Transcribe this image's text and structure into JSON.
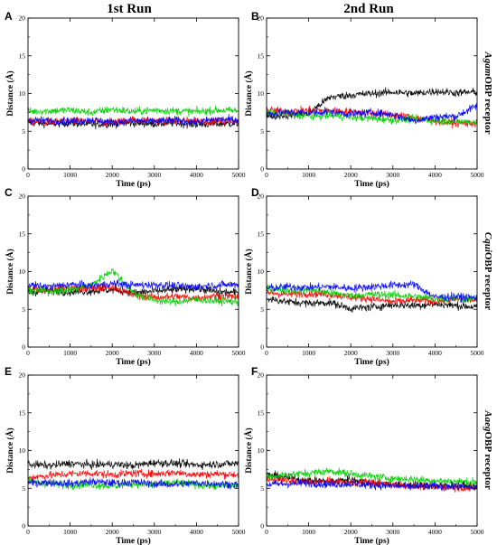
{
  "figure": {
    "column_titles": [
      "1st Run",
      "2nd Run"
    ],
    "row_labels": [
      {
        "italic": "Agam",
        "rest": "OBP receptor"
      },
      {
        "italic": "Cqui",
        "rest": "OBP receptor"
      },
      {
        "italic": "Aaeg",
        "rest": "OBP receptor"
      }
    ]
  },
  "chart_data": [
    {
      "type": "line",
      "panel": "A",
      "xlabel": "Time (ps)",
      "ylabel": "Distance (Å)",
      "xlim": [
        0,
        5000
      ],
      "ylim": [
        0,
        20
      ],
      "xticks": [
        0,
        1000,
        2000,
        3000,
        4000,
        5000
      ],
      "yticks": [
        0,
        5,
        10,
        15,
        20
      ],
      "x": [
        0,
        500,
        1000,
        1500,
        2000,
        2500,
        3000,
        3500,
        4000,
        4500,
        5000
      ],
      "series": [
        {
          "color": "#000000",
          "values": [
            6.2,
            6.0,
            6.1,
            5.9,
            6.0,
            6.1,
            6.0,
            6.1,
            5.9,
            6.0,
            6.0
          ]
        },
        {
          "color": "#ff0000",
          "values": [
            6.3,
            6.2,
            6.4,
            6.3,
            6.2,
            6.5,
            6.4,
            6.3,
            6.4,
            6.3,
            6.4
          ]
        },
        {
          "color": "#00cc00",
          "values": [
            7.6,
            7.7,
            7.8,
            7.5,
            7.9,
            7.6,
            7.8,
            7.7,
            7.6,
            7.8,
            7.7
          ]
        },
        {
          "color": "#0000ff",
          "values": [
            6.5,
            6.4,
            6.3,
            6.5,
            6.2,
            6.4,
            6.3,
            6.5,
            6.2,
            6.6,
            6.5
          ]
        }
      ]
    },
    {
      "type": "line",
      "panel": "B",
      "xlabel": "Time (ps)",
      "ylabel": "Distance (Å)",
      "xlim": [
        0,
        5000
      ],
      "ylim": [
        0,
        20
      ],
      "xticks": [
        0,
        1000,
        2000,
        3000,
        4000,
        5000
      ],
      "yticks": [
        0,
        5,
        10,
        15,
        20
      ],
      "x": [
        0,
        500,
        1000,
        1500,
        2000,
        2500,
        3000,
        3500,
        4000,
        4500,
        5000
      ],
      "series": [
        {
          "color": "#000000",
          "values": [
            7.0,
            7.1,
            7.4,
            9.5,
            9.8,
            10.0,
            10.2,
            10.0,
            10.3,
            10.1,
            10.2
          ]
        },
        {
          "color": "#ff0000",
          "values": [
            7.8,
            7.6,
            7.8,
            7.7,
            7.6,
            7.4,
            7.2,
            6.8,
            6.4,
            6.1,
            6.0
          ]
        },
        {
          "color": "#00cc00",
          "values": [
            7.5,
            7.3,
            7.0,
            7.1,
            6.9,
            6.7,
            6.5,
            6.6,
            6.4,
            6.3,
            6.2
          ]
        },
        {
          "color": "#0000ff",
          "values": [
            7.3,
            7.5,
            7.4,
            7.6,
            7.3,
            7.5,
            7.2,
            6.4,
            6.9,
            7.0,
            8.4
          ]
        }
      ]
    },
    {
      "type": "line",
      "panel": "C",
      "xlabel": "Time (ps)",
      "ylabel": "Distance (Å)",
      "xlim": [
        0,
        5000
      ],
      "ylim": [
        0,
        20
      ],
      "xticks": [
        0,
        1000,
        2000,
        3000,
        4000,
        5000
      ],
      "yticks": [
        0,
        5,
        10,
        15,
        20
      ],
      "x": [
        0,
        500,
        1000,
        1500,
        2000,
        2500,
        3000,
        3500,
        4000,
        4500,
        5000
      ],
      "series": [
        {
          "color": "#000000",
          "values": [
            7.2,
            7.5,
            7.3,
            7.4,
            7.6,
            7.2,
            7.4,
            7.6,
            7.8,
            7.3,
            7.2
          ]
        },
        {
          "color": "#ff0000",
          "values": [
            7.8,
            7.6,
            7.9,
            7.7,
            8.0,
            6.9,
            6.6,
            6.7,
            6.5,
            6.8,
            6.6
          ]
        },
        {
          "color": "#00cc00",
          "values": [
            7.5,
            7.4,
            7.6,
            8.2,
            10.2,
            7.2,
            6.2,
            6.0,
            6.3,
            6.1,
            6.0
          ]
        },
        {
          "color": "#0000ff",
          "values": [
            8.2,
            8.0,
            8.3,
            8.1,
            8.4,
            8.2,
            8.3,
            8.1,
            8.0,
            8.2,
            8.3
          ]
        }
      ]
    },
    {
      "type": "line",
      "panel": "D",
      "xlabel": "Time (ps)",
      "ylabel": "Distance (Å)",
      "xlim": [
        0,
        5000
      ],
      "ylim": [
        0,
        20
      ],
      "xticks": [
        0,
        1000,
        2000,
        3000,
        4000,
        5000
      ],
      "yticks": [
        0,
        5,
        10,
        15,
        20
      ],
      "x": [
        0,
        500,
        1000,
        1500,
        2000,
        2500,
        3000,
        3500,
        4000,
        4500,
        5000
      ],
      "series": [
        {
          "color": "#000000",
          "values": [
            6.4,
            6.0,
            5.8,
            5.9,
            5.1,
            5.3,
            5.6,
            5.5,
            5.7,
            5.5,
            5.3
          ]
        },
        {
          "color": "#ff0000",
          "values": [
            7.2,
            7.0,
            7.1,
            7.0,
            6.6,
            6.4,
            6.0,
            6.2,
            6.1,
            6.3,
            6.2
          ]
        },
        {
          "color": "#00cc00",
          "values": [
            7.8,
            7.5,
            7.6,
            7.2,
            6.8,
            7.0,
            6.9,
            6.7,
            6.4,
            6.5,
            6.3
          ]
        },
        {
          "color": "#0000ff",
          "values": [
            7.8,
            8.0,
            7.9,
            8.0,
            7.8,
            8.0,
            8.2,
            8.3,
            6.6,
            6.7,
            6.5
          ]
        }
      ]
    },
    {
      "type": "line",
      "panel": "E",
      "xlabel": "Time (ps)",
      "ylabel": "Distance (Å)",
      "xlim": [
        0,
        5000
      ],
      "ylim": [
        0,
        20
      ],
      "xticks": [
        0,
        1000,
        2000,
        3000,
        4000,
        5000
      ],
      "yticks": [
        0,
        5,
        10,
        15,
        20
      ],
      "x": [
        0,
        500,
        1000,
        1500,
        2000,
        2500,
        3000,
        3500,
        4000,
        4500,
        5000
      ],
      "series": [
        {
          "color": "#000000",
          "values": [
            8.2,
            8.0,
            8.3,
            8.1,
            8.2,
            8.0,
            8.4,
            8.3,
            8.1,
            8.2,
            8.3
          ]
        },
        {
          "color": "#ff0000",
          "values": [
            6.4,
            6.7,
            6.9,
            7.0,
            6.8,
            7.0,
            6.9,
            7.1,
            6.8,
            6.9,
            6.8
          ]
        },
        {
          "color": "#00cc00",
          "values": [
            5.9,
            5.6,
            5.4,
            5.5,
            5.3,
            5.6,
            5.4,
            5.8,
            5.5,
            5.3,
            5.4
          ]
        },
        {
          "color": "#0000ff",
          "values": [
            5.7,
            5.8,
            5.6,
            5.9,
            5.7,
            5.8,
            5.6,
            5.5,
            5.7,
            5.6,
            5.5
          ]
        }
      ]
    },
    {
      "type": "line",
      "panel": "F",
      "xlabel": "Time (ps)",
      "ylabel": "Distance (Å)",
      "xlim": [
        0,
        5000
      ],
      "ylim": [
        0,
        20
      ],
      "xticks": [
        0,
        1000,
        2000,
        3000,
        4000,
        5000
      ],
      "yticks": [
        0,
        5,
        10,
        15,
        20
      ],
      "x": [
        0,
        500,
        1000,
        1500,
        2000,
        2500,
        3000,
        3500,
        4000,
        4500,
        5000
      ],
      "series": [
        {
          "color": "#000000",
          "values": [
            6.8,
            6.4,
            6.0,
            5.9,
            6.2,
            5.7,
            5.5,
            5.4,
            5.3,
            5.4,
            5.2
          ]
        },
        {
          "color": "#ff0000",
          "values": [
            6.3,
            6.0,
            5.8,
            5.9,
            5.7,
            5.8,
            5.5,
            5.3,
            5.2,
            5.1,
            5.0
          ]
        },
        {
          "color": "#00cc00",
          "values": [
            6.5,
            6.8,
            7.0,
            7.3,
            6.9,
            6.6,
            6.3,
            6.2,
            6.0,
            5.9,
            5.8
          ]
        },
        {
          "color": "#0000ff",
          "values": [
            5.5,
            5.6,
            5.7,
            5.5,
            5.6,
            5.4,
            5.3,
            5.2,
            5.3,
            5.2,
            5.1
          ]
        }
      ]
    }
  ]
}
